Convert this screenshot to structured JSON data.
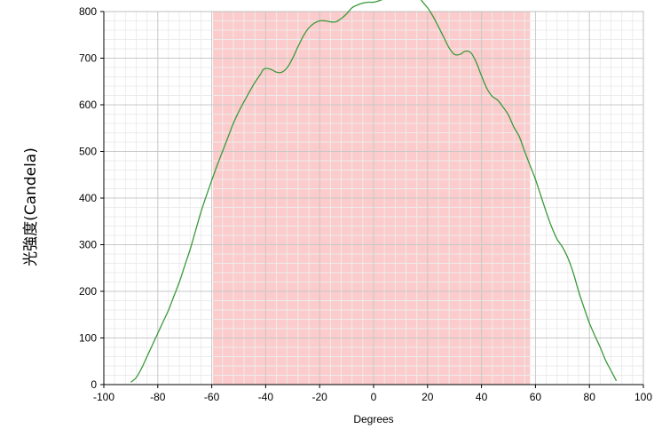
{
  "chart_data": {
    "type": "line",
    "title": "",
    "xlabel": "Degrees",
    "ylabel": "光強度(Candela)",
    "xlim": [
      -100,
      100
    ],
    "ylim": [
      0,
      800
    ],
    "x_ticks": [
      -100,
      -80,
      -60,
      -40,
      -20,
      0,
      20,
      40,
      60,
      80,
      100
    ],
    "y_ticks": [
      0,
      100,
      200,
      300,
      400,
      500,
      600,
      700,
      800
    ],
    "grid": true,
    "legend": "none",
    "highlight_band": {
      "x_start": -59.5,
      "x_end": 58,
      "color": "#fccbcb"
    },
    "series": [
      {
        "color": "#3a9a3a",
        "points": [
          [
            -90,
            5
          ],
          [
            -88,
            15
          ],
          [
            -86,
            35
          ],
          [
            -84,
            60
          ],
          [
            -82,
            85
          ],
          [
            -80,
            110
          ],
          [
            -78,
            135
          ],
          [
            -76,
            160
          ],
          [
            -74,
            190
          ],
          [
            -72,
            220
          ],
          [
            -70,
            255
          ],
          [
            -68,
            290
          ],
          [
            -66,
            330
          ],
          [
            -64,
            370
          ],
          [
            -62,
            405
          ],
          [
            -60,
            438
          ],
          [
            -58,
            470
          ],
          [
            -56,
            500
          ],
          [
            -54,
            530
          ],
          [
            -52,
            560
          ],
          [
            -50,
            585
          ],
          [
            -48,
            607
          ],
          [
            -46,
            628
          ],
          [
            -44,
            648
          ],
          [
            -42,
            665
          ],
          [
            -41,
            675
          ],
          [
            -40,
            678
          ],
          [
            -38,
            676
          ],
          [
            -36,
            670
          ],
          [
            -34,
            670
          ],
          [
            -32,
            680
          ],
          [
            -30,
            700
          ],
          [
            -28,
            725
          ],
          [
            -26,
            748
          ],
          [
            -24,
            765
          ],
          [
            -22,
            775
          ],
          [
            -20,
            780
          ],
          [
            -18,
            780
          ],
          [
            -16,
            778
          ],
          [
            -14,
            778
          ],
          [
            -12,
            785
          ],
          [
            -10,
            795
          ],
          [
            -8,
            808
          ],
          [
            -6,
            814
          ],
          [
            -4,
            818
          ],
          [
            -2,
            820
          ],
          [
            0,
            820
          ],
          [
            2,
            823
          ],
          [
            4,
            828
          ],
          [
            6,
            836
          ],
          [
            8,
            844
          ],
          [
            10,
            850
          ],
          [
            12,
            852
          ],
          [
            14,
            848
          ],
          [
            16,
            838
          ],
          [
            18,
            822
          ],
          [
            20,
            808
          ],
          [
            22,
            790
          ],
          [
            24,
            768
          ],
          [
            26,
            745
          ],
          [
            28,
            722
          ],
          [
            30,
            708
          ],
          [
            32,
            708
          ],
          [
            34,
            715
          ],
          [
            36,
            712
          ],
          [
            38,
            692
          ],
          [
            40,
            662
          ],
          [
            42,
            635
          ],
          [
            44,
            618
          ],
          [
            46,
            610
          ],
          [
            48,
            595
          ],
          [
            50,
            578
          ],
          [
            52,
            552
          ],
          [
            54,
            532
          ],
          [
            56,
            500
          ],
          [
            58,
            470
          ],
          [
            60,
            440
          ],
          [
            62,
            405
          ],
          [
            64,
            370
          ],
          [
            66,
            338
          ],
          [
            68,
            312
          ],
          [
            70,
            295
          ],
          [
            72,
            272
          ],
          [
            74,
            240
          ],
          [
            76,
            200
          ],
          [
            78,
            165
          ],
          [
            80,
            132
          ],
          [
            82,
            105
          ],
          [
            84,
            80
          ],
          [
            86,
            52
          ],
          [
            88,
            30
          ],
          [
            90,
            8
          ]
        ]
      }
    ]
  }
}
